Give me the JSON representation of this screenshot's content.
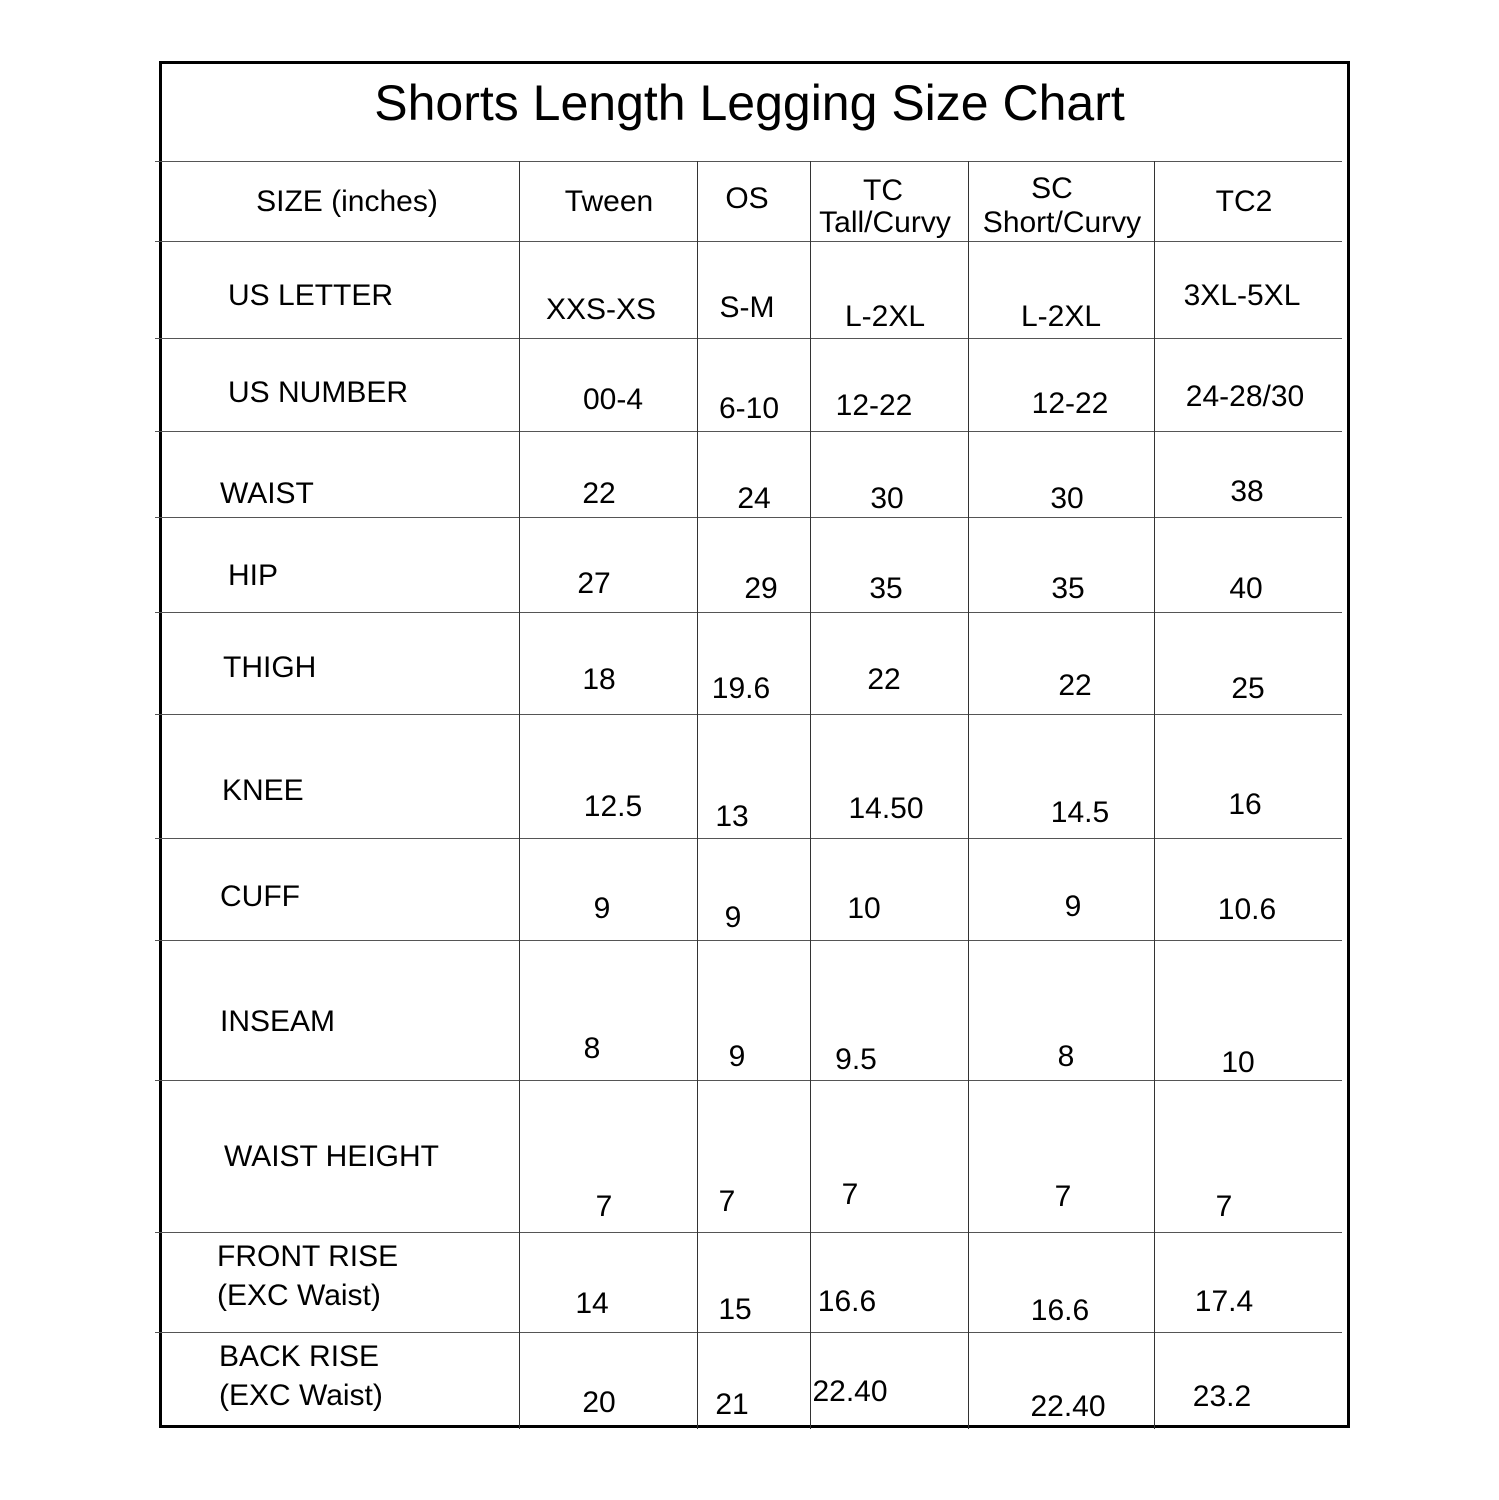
{
  "title": "Shorts Length Legging Size Chart",
  "header": {
    "label": "SIZE (inches)",
    "columns": [
      {
        "line1": "Tween"
      },
      {
        "line1": "OS"
      },
      {
        "line1": "TC",
        "line2": "Tall/Curvy"
      },
      {
        "line1": "SC",
        "line2": "Short/Curvy"
      },
      {
        "line1": "TC2"
      }
    ]
  },
  "rows": [
    {
      "label": "US LETTER",
      "values": [
        "XXS-XS",
        "S-M",
        "L-2XL",
        "L-2XL",
        "3XL-5XL"
      ]
    },
    {
      "label": "US NUMBER",
      "values": [
        "00-4",
        "6-10",
        "12-22",
        "12-22",
        "24-28/30"
      ]
    },
    {
      "label": "WAIST",
      "values": [
        "22",
        "24",
        "30",
        "30",
        "38"
      ]
    },
    {
      "label": "HIP",
      "values": [
        "27",
        "29",
        "35",
        "35",
        "40"
      ]
    },
    {
      "label": "THIGH",
      "values": [
        "18",
        "19.6",
        "22",
        "22",
        "25"
      ]
    },
    {
      "label": "KNEE",
      "values": [
        "12.5",
        "13",
        "14.50",
        "14.5",
        "16"
      ]
    },
    {
      "label": "CUFF",
      "values": [
        "9",
        "9",
        "10",
        "9",
        "10.6"
      ]
    },
    {
      "label": "INSEAM",
      "values": [
        "8",
        "9",
        "9.5",
        "8",
        "10"
      ]
    },
    {
      "label": "WAIST HEIGHT",
      "values": [
        "7",
        "7",
        "7",
        "7",
        "7"
      ]
    },
    {
      "label": "FRONT RISE",
      "label2": "(EXC Waist)",
      "values": [
        "14",
        "15",
        "16.6",
        "16.6",
        "17.4"
      ]
    },
    {
      "label": "BACK RISE",
      "label2": "(EXC Waist)",
      "values": [
        "20",
        "21",
        "22.40",
        "22.40",
        "23.2"
      ]
    }
  ]
}
